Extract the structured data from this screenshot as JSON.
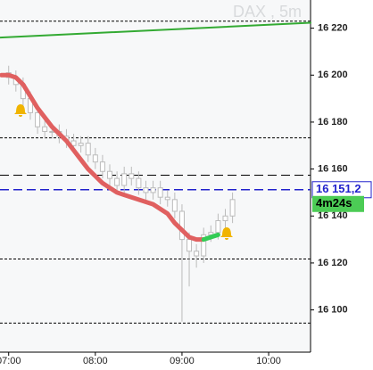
{
  "chart_data": {
    "type": "candlestick",
    "title": "DAX , 5m",
    "xlim": [
      414,
      629
    ],
    "ylim": [
      16082,
      16232
    ],
    "xticks": [
      {
        "value": 420,
        "label": "07:00"
      },
      {
        "value": 480,
        "label": "08:00"
      },
      {
        "value": 540,
        "label": "09:00"
      },
      {
        "value": 600,
        "label": "10:00"
      }
    ],
    "yticks": [
      {
        "value": 16100,
        "label": "16 100"
      },
      {
        "value": 16120,
        "label": "16 120"
      },
      {
        "value": 16140,
        "label": "16 140"
      },
      {
        "value": 16160,
        "label": "16 160"
      },
      {
        "value": 16180,
        "label": "16 180"
      },
      {
        "value": 16200,
        "label": "16 200"
      },
      {
        "value": 16220,
        "label": "16 220"
      }
    ],
    "x": [
      420,
      425,
      430,
      435,
      440,
      445,
      450,
      455,
      460,
      465,
      470,
      475,
      480,
      485,
      490,
      495,
      500,
      505,
      510,
      515,
      520,
      525,
      530,
      535,
      540,
      545,
      550,
      555,
      560,
      565,
      570,
      575
    ],
    "close": [
      16199,
      16196,
      16190,
      16184,
      16178,
      16176,
      16176,
      16174,
      16172,
      16170,
      16171,
      16166,
      16163,
      16159,
      16156,
      16153,
      16158,
      16156,
      16152,
      16150,
      16152,
      16148,
      16147,
      16142,
      16130,
      16125,
      16123,
      16132,
      16133,
      16138,
      16140,
      16147
    ],
    "open": [
      16201,
      16199,
      16196,
      16190,
      16184,
      16178,
      16176,
      16176,
      16174,
      16172,
      16170,
      16171,
      16166,
      16163,
      16159,
      16156,
      16153,
      16158,
      16156,
      16152,
      16150,
      16152,
      16148,
      16147,
      16142,
      16130,
      16125,
      16123,
      16132,
      16133,
      16138,
      16140
    ],
    "high": [
      16204,
      16202,
      16199,
      16193,
      16187,
      16181,
      16179,
      16179,
      16177,
      16175,
      16174,
      16174,
      16169,
      16166,
      16162,
      16159,
      16161,
      16161,
      16159,
      16155,
      16155,
      16155,
      16151,
      16150,
      16145,
      16133,
      16128,
      16135,
      16136,
      16141,
      16143,
      16150
    ],
    "low": [
      16196,
      16193,
      16187,
      16181,
      16175,
      16173,
      16173,
      16171,
      16169,
      16167,
      16167,
      16163,
      16160,
      16156,
      16153,
      16150,
      16150,
      16153,
      16149,
      16147,
      16147,
      16145,
      16144,
      16139,
      16095,
      16110,
      16118,
      16120,
      16129,
      16130,
      16135,
      16137
    ],
    "candle_color": "#bbbbbb",
    "series": [
      {
        "color": "#e06060",
        "x": [
          415,
          420,
          425,
          430,
          435,
          440,
          445,
          450,
          455,
          460,
          465,
          470,
          475,
          480,
          485,
          490,
          495,
          500,
          505,
          510,
          515,
          520,
          525,
          530,
          535,
          540,
          545,
          550,
          555
        ],
        "values": [
          16200,
          16200,
          16199,
          16196,
          16191,
          16186,
          16182,
          16178,
          16175,
          16172,
          16168,
          16164,
          16160,
          16157,
          16154,
          16152,
          16150,
          16149,
          16148,
          16147,
          16146,
          16145,
          16143,
          16141,
          16137,
          16134,
          16131,
          16130,
          16130
        ]
      },
      {
        "color": "#33cc55",
        "x": [
          555,
          560,
          565
        ],
        "values": [
          16130,
          16131,
          16132
        ]
      },
      {
        "color": "#33aa33",
        "x": [
          414,
          629
        ],
        "values": [
          16216,
          16222.3
        ]
      }
    ],
    "levels": [
      {
        "value": 16223,
        "style": "dotted",
        "color": "#000000"
      },
      {
        "value": 16173.3,
        "style": "dotted",
        "color": "#000000"
      },
      {
        "value": 16157.4,
        "style": "dashed",
        "color": "#000000"
      },
      {
        "value": 16151.2,
        "style": "dashed",
        "color": "#2222cc"
      },
      {
        "value": 16121.7,
        "style": "dotted",
        "color": "#000000"
      },
      {
        "value": 16094.4,
        "style": "dotted",
        "color": "#000000"
      }
    ],
    "price": {
      "value": 16151.2,
      "label": "16 151,2"
    },
    "timer": "4m24s"
  }
}
